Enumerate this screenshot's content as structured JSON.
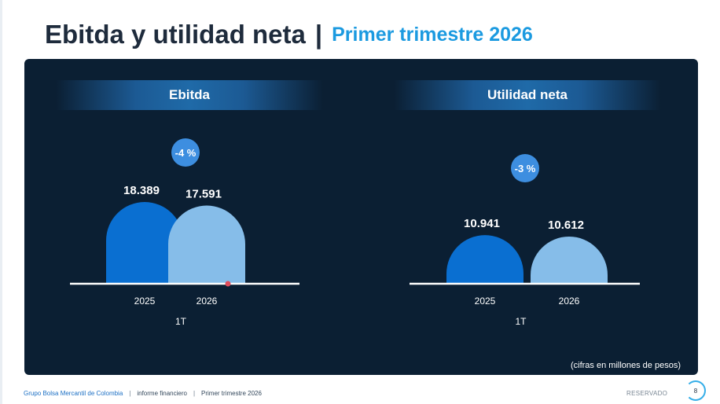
{
  "header": {
    "title": "Ebitda y utilidad neta",
    "separator": "|",
    "subtitle": "Primer trimestre 2026"
  },
  "colors": {
    "panel_bg": "#0b1f33",
    "bar_2025": "#0a6fd1",
    "bar_2026": "#86bde9",
    "badge": "#3d8ee0",
    "subtitle": "#1b9ae0"
  },
  "chart_data": [
    {
      "type": "bar",
      "title": "Ebitda",
      "categories": [
        "2025",
        "2026"
      ],
      "values": [
        18389,
        17591
      ],
      "value_labels": [
        "18.389",
        "17.591"
      ],
      "group_label": "1T",
      "change_label": "-4 %"
    },
    {
      "type": "bar",
      "title": "Utilidad neta",
      "categories": [
        "2025",
        "2026"
      ],
      "values": [
        10941,
        10612
      ],
      "value_labels": [
        "10.941",
        "10.612"
      ],
      "group_label": "1T",
      "change_label": "-3 %"
    }
  ],
  "note": "(cifras en millones de pesos)",
  "footer": {
    "company": "Grupo Bolsa Mercantil de Colombia",
    "report": "informe financiero",
    "period": "Primer trimestre 2026",
    "reserved": "RESERVADO",
    "page": "8"
  }
}
